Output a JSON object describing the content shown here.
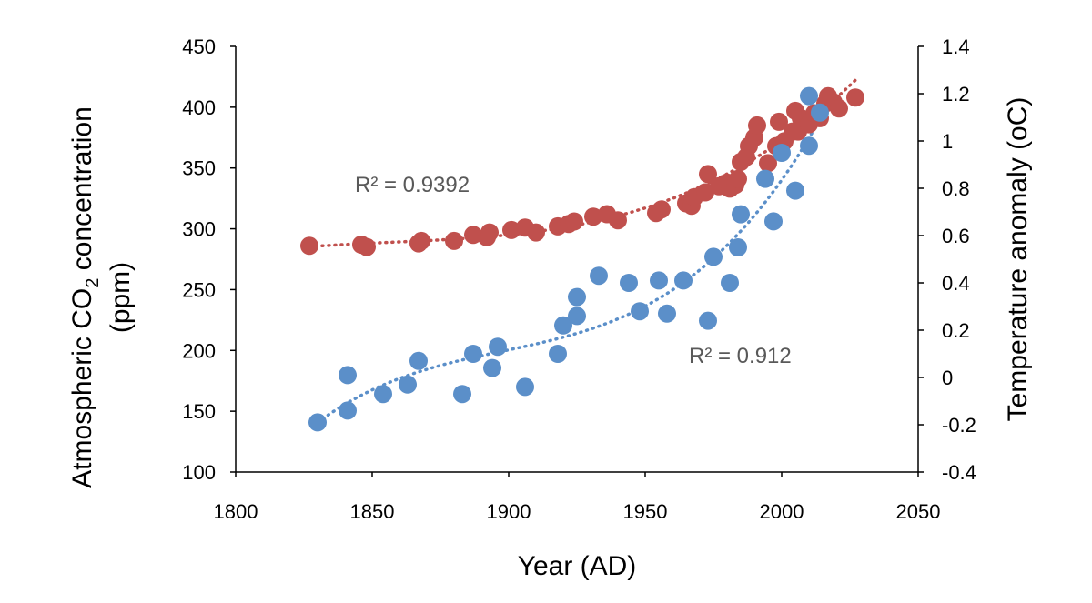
{
  "chart_data": {
    "type": "scatter",
    "xlabel": "Year (AD)",
    "ylabel_left": "Atmospheric CO",
    "ylabel_left_sub": "2",
    "ylabel_left_suffix": " concentration",
    "ylabel_left_line2": "(ppm)",
    "ylabel_right": "Temperature anomaly (oC)",
    "xlim": [
      1800,
      2050
    ],
    "ylim_left": [
      100,
      450
    ],
    "ylim_right": [
      -0.4,
      1.4
    ],
    "x_ticks": [
      "1800",
      "1850",
      "1900",
      "1950",
      "2000",
      "2050"
    ],
    "y_left_ticks": [
      "100",
      "150",
      "200",
      "250",
      "300",
      "350",
      "400",
      "450"
    ],
    "y_right_ticks": [
      "-0.4",
      "-0.2",
      "0",
      "0.2",
      "0.4",
      "0.6",
      "0.8",
      "1",
      "1.2",
      "1.4"
    ],
    "grid": false,
    "legend": "none",
    "series": [
      {
        "axis": "left",
        "color": "#C0504D",
        "trendline": "dotted",
        "r2_label": "R² = 0.9392",
        "points": [
          [
            1827,
            286
          ],
          [
            1846,
            287
          ],
          [
            1848,
            285
          ],
          [
            1867,
            288
          ],
          [
            1868,
            290
          ],
          [
            1880,
            290
          ],
          [
            1887,
            295
          ],
          [
            1892,
            293
          ],
          [
            1893,
            297
          ],
          [
            1901,
            299
          ],
          [
            1906,
            301
          ],
          [
            1910,
            297
          ],
          [
            1918,
            302
          ],
          [
            1922,
            304
          ],
          [
            1924,
            306
          ],
          [
            1931,
            310
          ],
          [
            1936,
            312
          ],
          [
            1940,
            307
          ],
          [
            1954,
            313
          ],
          [
            1956,
            316
          ],
          [
            1965,
            321
          ],
          [
            1967,
            319
          ],
          [
            1968,
            326
          ],
          [
            1972,
            330
          ],
          [
            1973,
            345
          ],
          [
            1977,
            335
          ],
          [
            1980,
            338
          ],
          [
            1981,
            333
          ],
          [
            1983,
            336
          ],
          [
            1984,
            341
          ],
          [
            1985,
            355
          ],
          [
            1987,
            359
          ],
          [
            1988,
            368
          ],
          [
            1990,
            375
          ],
          [
            1991,
            385
          ],
          [
            1995,
            354
          ],
          [
            1998,
            368
          ],
          [
            1999,
            388
          ],
          [
            2001,
            372
          ],
          [
            2004,
            380
          ],
          [
            2005,
            397
          ],
          [
            2006,
            380
          ],
          [
            2007,
            391
          ],
          [
            2010,
            386
          ],
          [
            2012,
            395
          ],
          [
            2014,
            391
          ],
          [
            2016,
            403
          ],
          [
            2017,
            409
          ],
          [
            2019,
            404
          ],
          [
            2021,
            399
          ],
          [
            2027,
            408
          ]
        ]
      },
      {
        "axis": "right",
        "color": "#5B8FC9",
        "trendline": "dotted",
        "r2_label": "R² = 0.912",
        "points": [
          [
            1830,
            -0.19
          ],
          [
            1841,
            0.01
          ],
          [
            1841,
            -0.14
          ],
          [
            1854,
            -0.07
          ],
          [
            1863,
            -0.03
          ],
          [
            1867,
            0.07
          ],
          [
            1883,
            -0.07
          ],
          [
            1887,
            0.1
          ],
          [
            1894,
            0.04
          ],
          [
            1896,
            0.13
          ],
          [
            1906,
            -0.04
          ],
          [
            1918,
            0.1
          ],
          [
            1920,
            0.22
          ],
          [
            1925,
            0.26
          ],
          [
            1925,
            0.34
          ],
          [
            1933,
            0.43
          ],
          [
            1944,
            0.4
          ],
          [
            1948,
            0.28
          ],
          [
            1955,
            0.41
          ],
          [
            1958,
            0.27
          ],
          [
            1964,
            0.41
          ],
          [
            1973,
            0.24
          ],
          [
            1975,
            0.51
          ],
          [
            1981,
            0.4
          ],
          [
            1984,
            0.55
          ],
          [
            1985,
            0.69
          ],
          [
            1994,
            0.84
          ],
          [
            1997,
            0.66
          ],
          [
            2000,
            0.95
          ],
          [
            2005,
            0.79
          ],
          [
            2010,
            0.98
          ],
          [
            2010,
            1.19
          ],
          [
            2014,
            1.12
          ]
        ]
      }
    ]
  }
}
